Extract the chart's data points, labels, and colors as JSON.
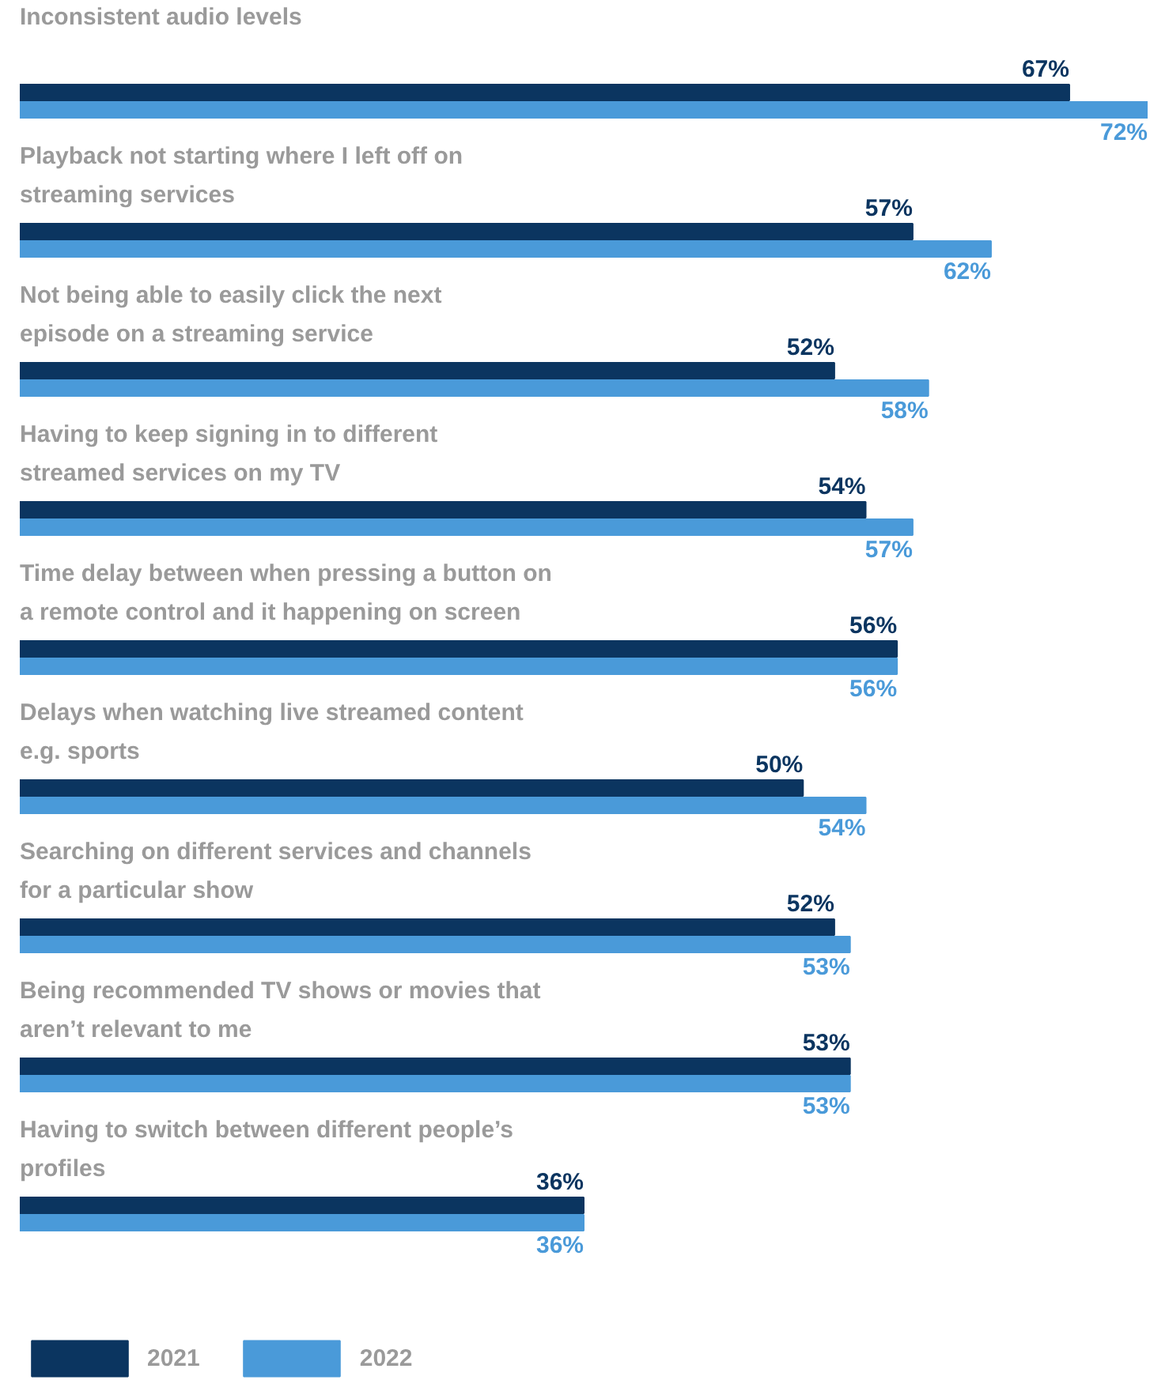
{
  "chart_data": {
    "type": "bar",
    "orientation": "horizontal",
    "legend": "bottom left",
    "grid": false,
    "categories": [
      "Inconsistent audio levels",
      "Playback not starting where I left off on streaming services",
      "Not being able to easily click the next episode on a streaming service",
      "Having to keep signing in to different streamed services on my TV",
      "Time delay between when pressing a button on a remote control and it happening on screen",
      "Delays when watching live streamed content e.g. sports",
      "Searching on different services and channels for a particular show",
      "Being recommended TV shows or movies that aren’t relevant to me",
      "Having to switch between different people’s profiles"
    ],
    "series": [
      {
        "name": "2021",
        "color": "#0b3560",
        "values": [
          67,
          57,
          52,
          54,
          56,
          50,
          52,
          53,
          36
        ],
        "value_labels": [
          "67%",
          "57%",
          "52%",
          "54%",
          "56%",
          "50%",
          "52%",
          "53%",
          "36%"
        ]
      },
      {
        "name": "2022",
        "color": "#4a9ad9",
        "values": [
          72,
          62,
          58,
          57,
          56,
          54,
          53,
          53,
          36
        ],
        "value_labels": [
          "72%",
          "62%",
          "58%",
          "57%",
          "56%",
          "54%",
          "53%",
          "53%",
          "36%"
        ]
      }
    ]
  }
}
